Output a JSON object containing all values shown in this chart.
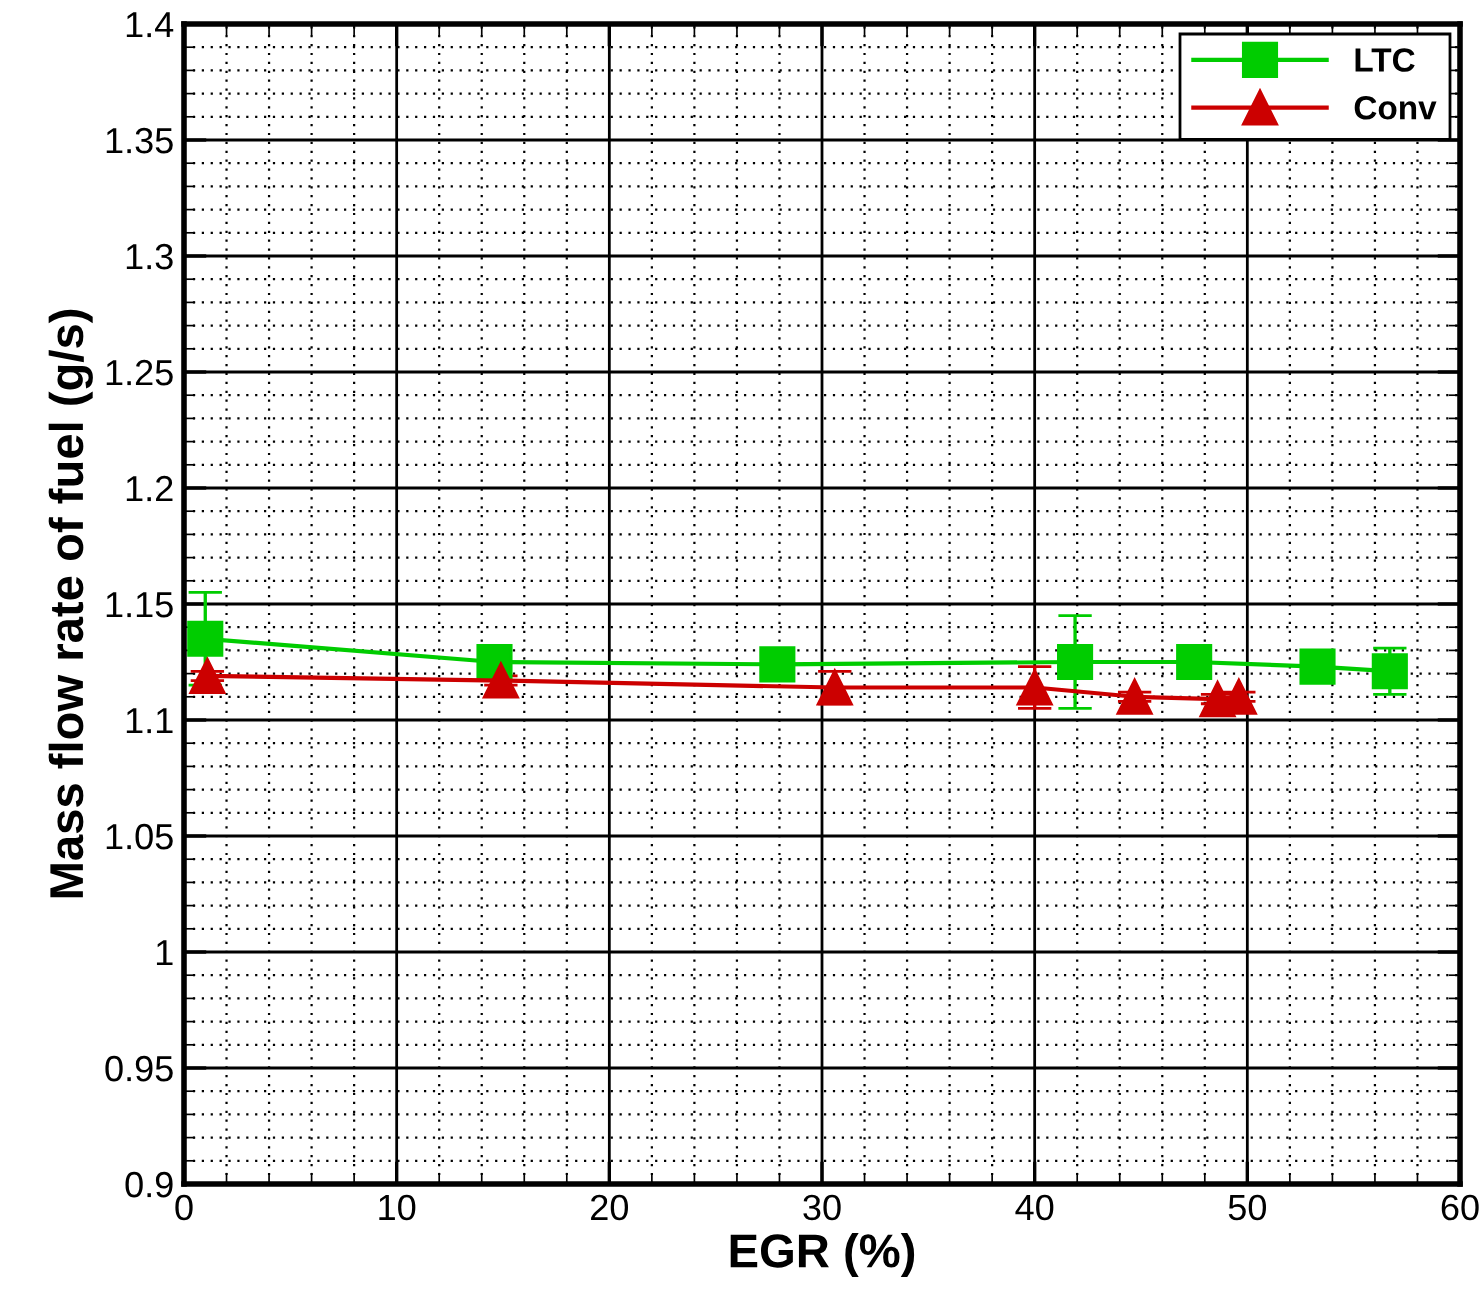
{
  "chart_data": {
    "type": "line",
    "xlabel": "EGR (%)",
    "ylabel": "Mass flow rate of fuel (g/s)",
    "xlim": [
      0,
      60
    ],
    "xticks": [
      0,
      10,
      20,
      30,
      40,
      50,
      60
    ],
    "ylim": [
      0.9,
      1.4
    ],
    "yticks": [
      0.9,
      0.95,
      1,
      1.05,
      1.1,
      1.15,
      1.2,
      1.25,
      1.3,
      1.35,
      1.4
    ],
    "grid": true,
    "legend": "top right",
    "line_style": "solid",
    "series": [
      {
        "name": "LTC",
        "color": "#00cc00",
        "marker": "square",
        "x": [
          1.0,
          14.6,
          27.9,
          41.9,
          47.5,
          53.3,
          56.7
        ],
        "values": [
          1.135,
          1.125,
          1.124,
          1.125,
          1.125,
          1.123,
          1.121
        ],
        "errors": [
          0.02,
          0.002,
          0.002,
          0.02,
          0.002,
          0.003,
          0.01
        ]
      },
      {
        "name": "Conv",
        "color": "#cc0000",
        "marker": "triangle",
        "x": [
          1.1,
          14.9,
          30.6,
          40.0,
          44.7,
          48.6,
          49.6
        ],
        "values": [
          1.119,
          1.117,
          1.114,
          1.114,
          1.11,
          1.109,
          1.11
        ],
        "errors": [
          0.002,
          0.002,
          0.007,
          0.009,
          0.002,
          0.002,
          0.002
        ]
      }
    ]
  }
}
